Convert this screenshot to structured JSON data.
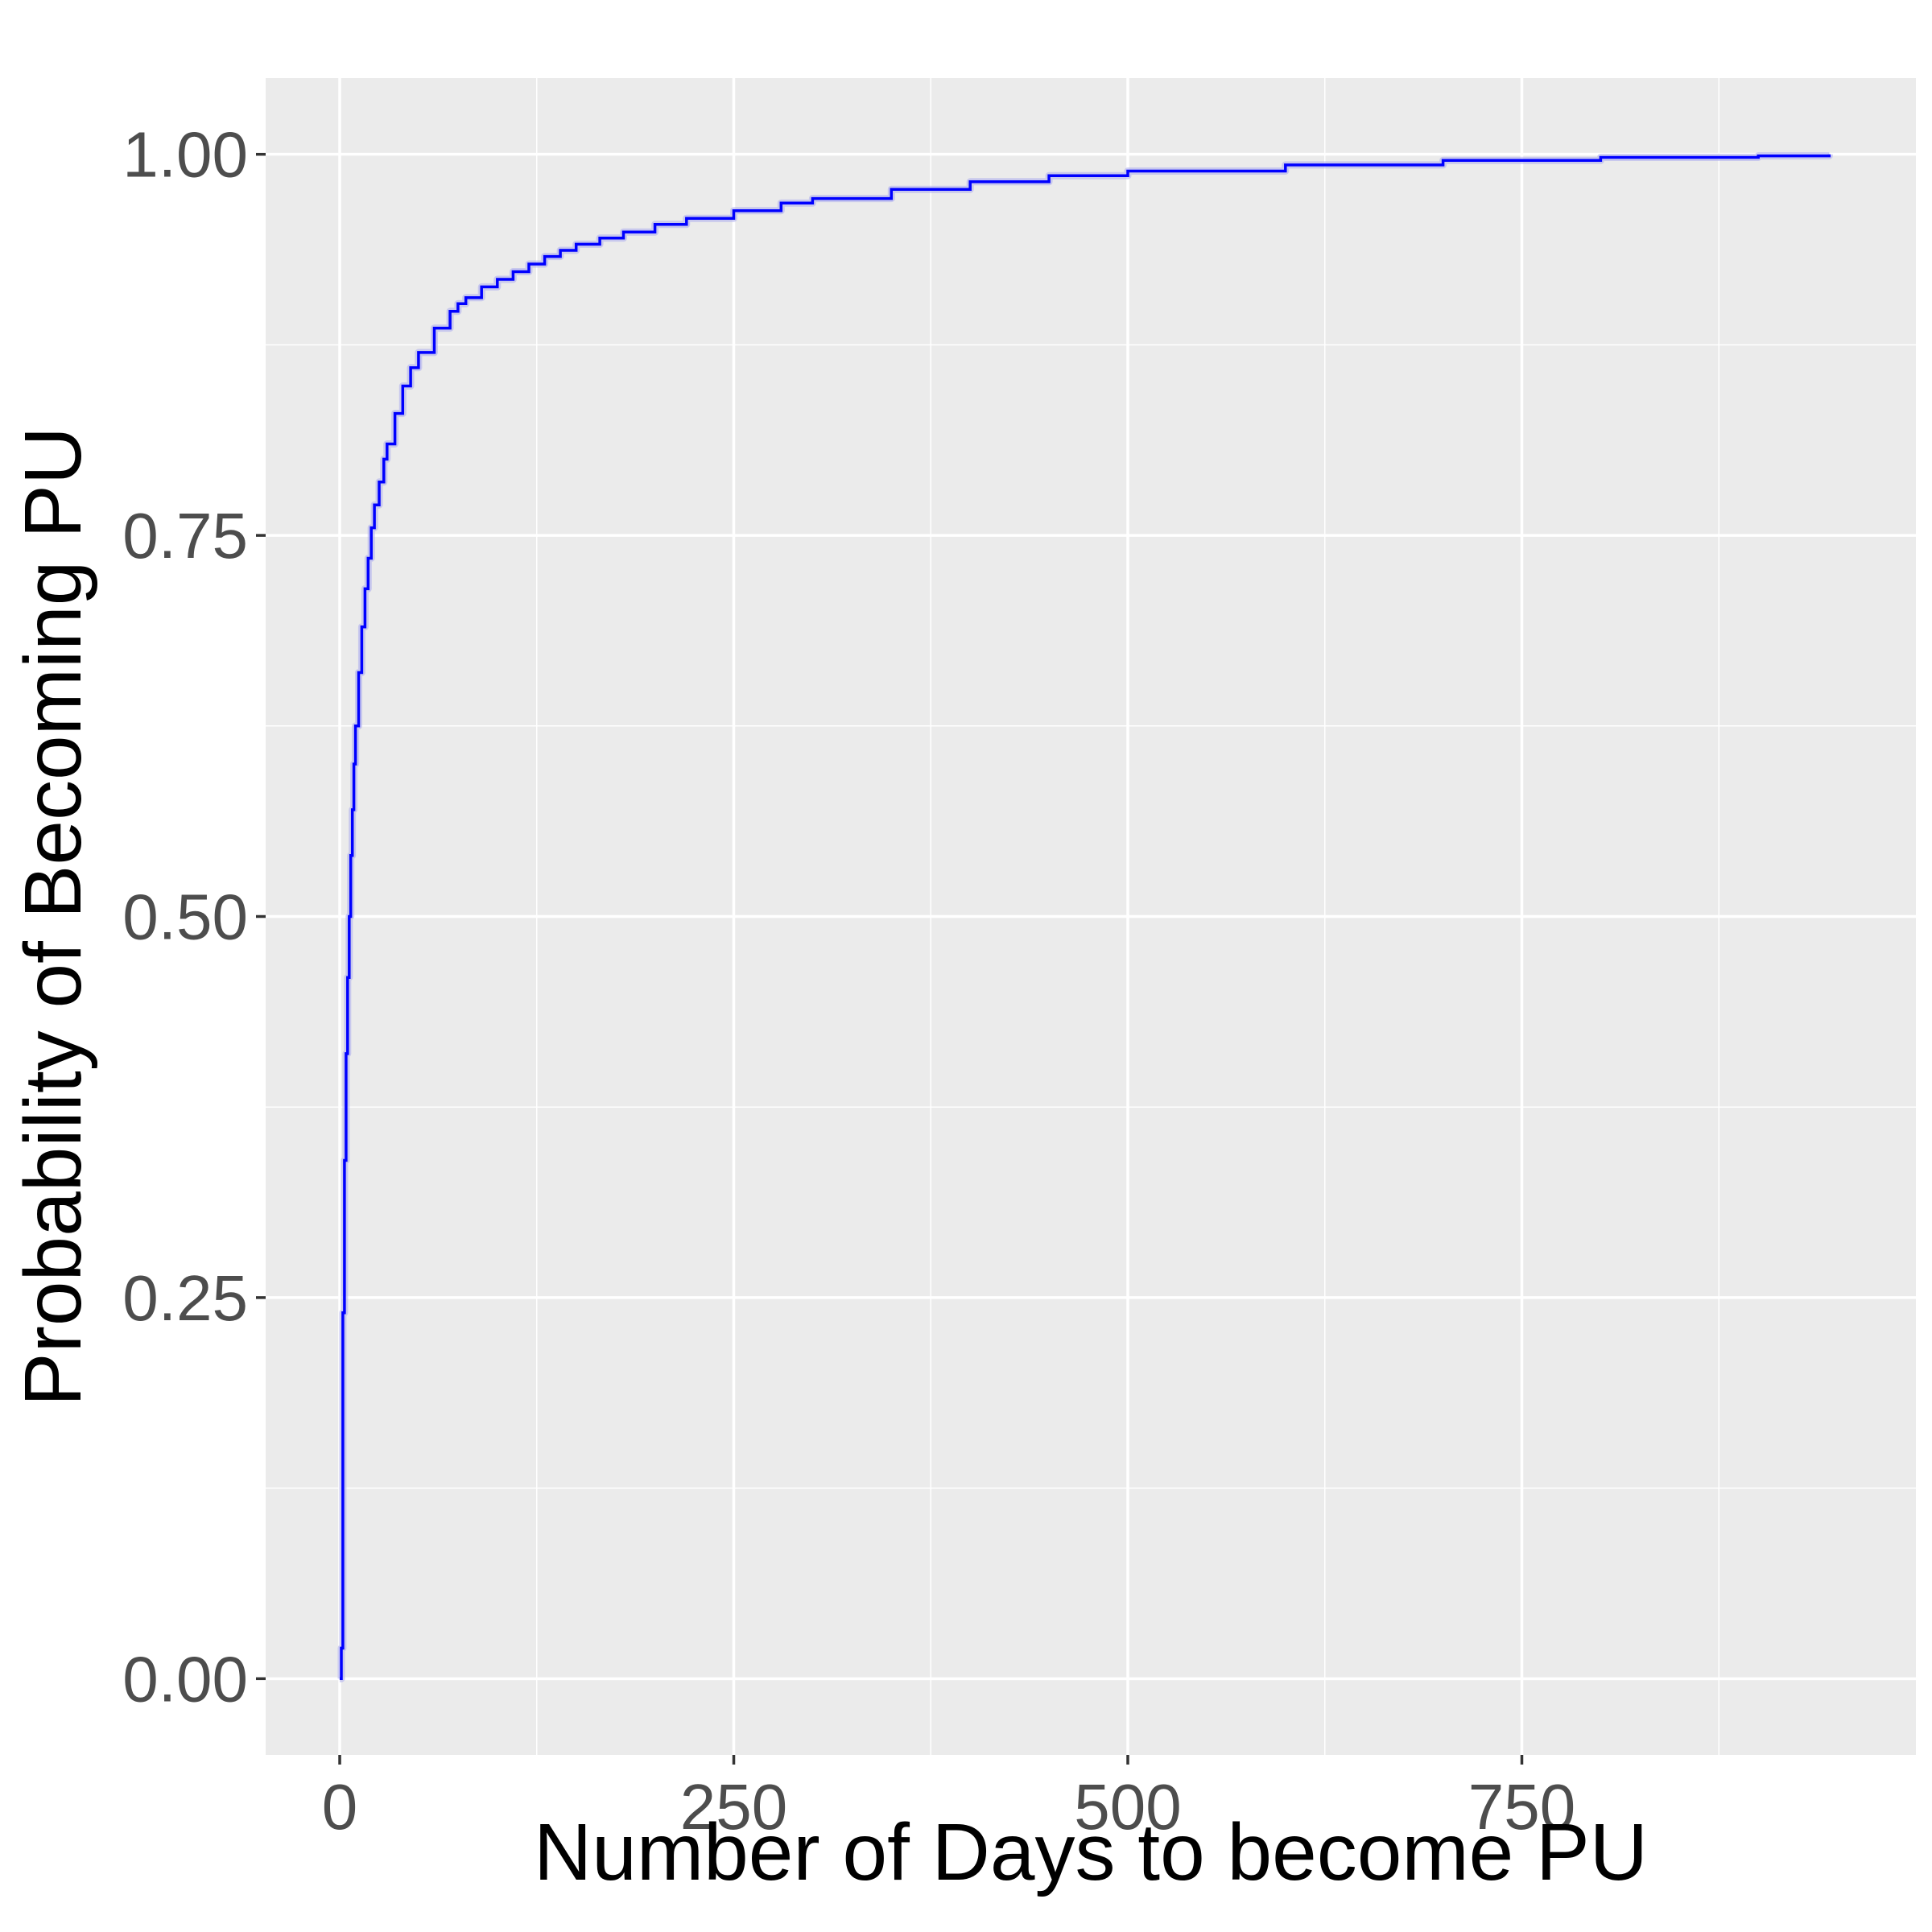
{
  "colors": {
    "panel_background": "#EBEBEB",
    "grid_major": "#FFFFFF",
    "grid_minor": "#F5F5F5",
    "tick_text": "#4D4D4D",
    "tick_mark": "#333333",
    "line": "#0000FF",
    "ribbon": "#B0B0EE"
  },
  "chart_data": {
    "type": "line",
    "title": "",
    "xlabel": "Number of Days to become PU",
    "ylabel": "Probability of Becoming PU",
    "xlim": [
      -47,
      1000
    ],
    "ylim": [
      -0.05,
      1.05
    ],
    "xticks": [
      0,
      250,
      500,
      750
    ],
    "xtick_labels": [
      "0",
      "250",
      "500",
      "750"
    ],
    "yticks": [
      0,
      0.25,
      0.5,
      0.75,
      1
    ],
    "ytick_labels": [
      "0.00",
      "0.25",
      "0.50",
      "0.75",
      "1.00"
    ],
    "grid": true,
    "legend": "none",
    "step": true,
    "series": [
      {
        "x": [
          0,
          1,
          2,
          3,
          4,
          5,
          6,
          7,
          8,
          9,
          10,
          12,
          14,
          16,
          18,
          20,
          22,
          25,
          28,
          30,
          35,
          40,
          45,
          50,
          60,
          70,
          75,
          80,
          90,
          100,
          110,
          120,
          130,
          140,
          150,
          165,
          180,
          200,
          220,
          250,
          280,
          300,
          350,
          400,
          450,
          500,
          600,
          700,
          800,
          900,
          945
        ],
        "y": [
          0.0,
          0.02,
          0.24,
          0.34,
          0.41,
          0.46,
          0.5,
          0.54,
          0.57,
          0.6,
          0.625,
          0.66,
          0.69,
          0.715,
          0.735,
          0.755,
          0.77,
          0.785,
          0.8,
          0.81,
          0.83,
          0.848,
          0.86,
          0.87,
          0.886,
          0.897,
          0.902,
          0.906,
          0.913,
          0.918,
          0.923,
          0.928,
          0.933,
          0.937,
          0.941,
          0.945,
          0.949,
          0.954,
          0.958,
          0.963,
          0.968,
          0.971,
          0.977,
          0.982,
          0.986,
          0.989,
          0.993,
          0.996,
          0.998,
          0.999,
          1.0
        ]
      }
    ]
  }
}
